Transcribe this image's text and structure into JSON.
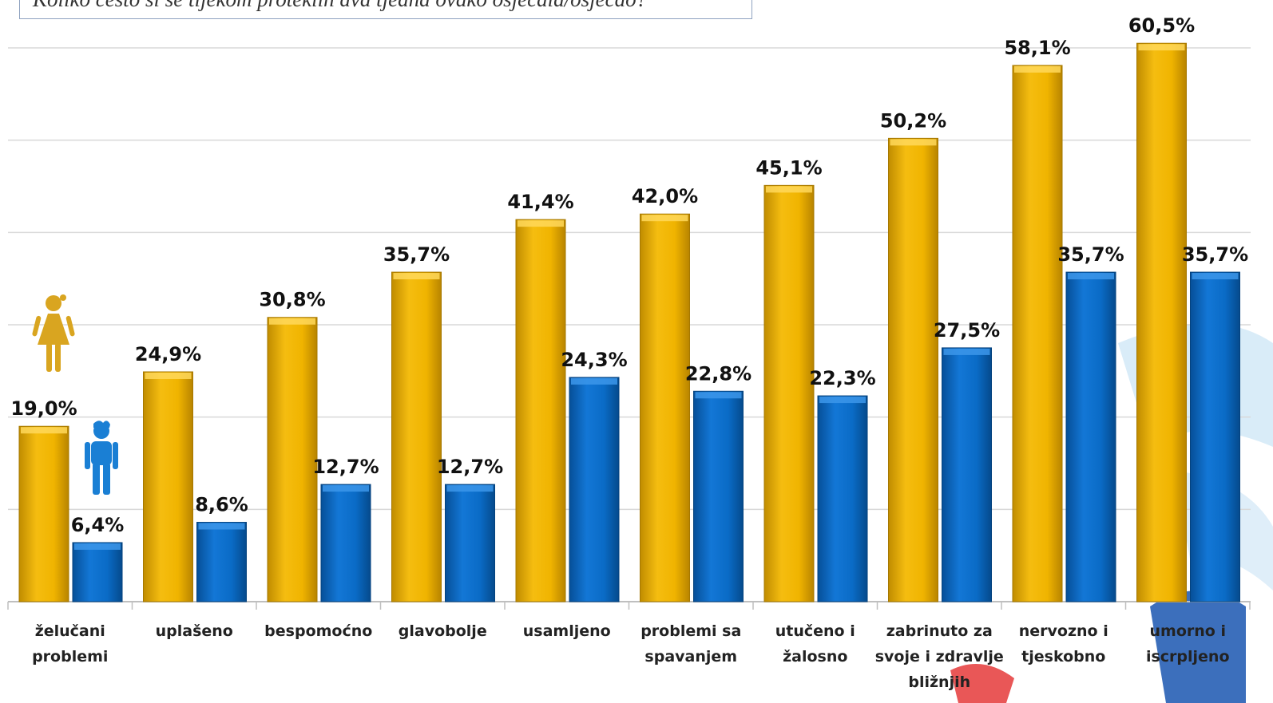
{
  "title": "Koliko često si se tijekom proteklih dva tjedna ovako osjećala/osjećao?",
  "colors": {
    "female": "#f0b400",
    "male": "#0a6bc6",
    "grid": "#d9d9d9"
  },
  "icons": {
    "female": "girl-icon",
    "male": "boy-icon"
  },
  "chart_data": {
    "type": "bar",
    "categories": [
      [
        "želučani",
        "problemi"
      ],
      [
        "uplašeno"
      ],
      [
        "bespomoćno"
      ],
      [
        "glavobolje"
      ],
      [
        "usamljeno"
      ],
      [
        "problemi sa",
        "spavanjem"
      ],
      [
        "utučeno i",
        "žalosno"
      ],
      [
        "zabrinuto za",
        "svoje i zdravlje",
        "bližnjih"
      ],
      [
        "nervozno i",
        "tjeskobno"
      ],
      [
        "umorno i",
        "iscrpljeno"
      ]
    ],
    "series": [
      {
        "values": [
          19.0,
          24.9,
          30.8,
          35.7,
          41.4,
          42.0,
          45.1,
          50.2,
          58.1,
          60.5
        ],
        "labels": [
          "19,0%",
          "24,9%",
          "30,8%",
          "35,7%",
          "41,4%",
          "42,0%",
          "45,1%",
          "50,2%",
          "58,1%",
          "60,5%"
        ]
      },
      {
        "values": [
          6.4,
          8.6,
          12.7,
          12.7,
          24.3,
          22.8,
          22.3,
          27.5,
          35.7,
          35.7
        ],
        "labels": [
          "6,4%",
          "8,6%",
          "12,7%",
          "12,7%",
          "24,3%",
          "22,8%",
          "22,3%",
          "27,5%",
          "35,7%",
          "35,7%"
        ]
      }
    ],
    "ylim": [
      0,
      60
    ],
    "grid": true,
    "legend": "icons left"
  }
}
